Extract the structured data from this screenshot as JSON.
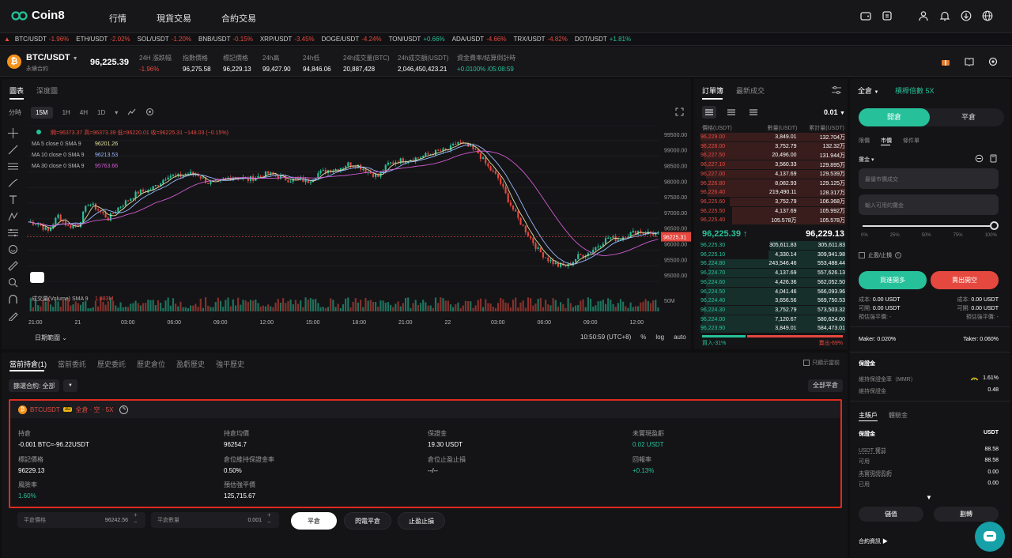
{
  "brand": {
    "name": "Coin8"
  },
  "nav": {
    "links": [
      "行情",
      "現貨交易",
      "合約交易"
    ]
  },
  "ticker": [
    {
      "sym": "BTC/USDT",
      "chg": "-1.96%",
      "up": false
    },
    {
      "sym": "ETH/USDT",
      "chg": "-2.02%",
      "up": false
    },
    {
      "sym": "SOL/USDT",
      "chg": "-1.20%",
      "up": false
    },
    {
      "sym": "BNB/USDT",
      "chg": "-0.15%",
      "up": false
    },
    {
      "sym": "XRP/USDT",
      "chg": "-3.45%",
      "up": false
    },
    {
      "sym": "DOGE/USDT",
      "chg": "-4.24%",
      "up": false
    },
    {
      "sym": "TON/USDT",
      "chg": "+0.66%",
      "up": true
    },
    {
      "sym": "ADA/USDT",
      "chg": "-4.66%",
      "up": false
    },
    {
      "sym": "TRX/USDT",
      "chg": "-4.82%",
      "up": false
    },
    {
      "sym": "DOT/USDT",
      "chg": "+1.81%",
      "up": true
    }
  ],
  "pair": {
    "coin_letter": "₿",
    "name": "BTC/USDT",
    "sub": "永續合約",
    "price": "96,225.39",
    "stats": [
      {
        "label": "24H 漲跌幅",
        "value": "-1.96%"
      },
      {
        "label": "指數價格",
        "value": "96,275.58"
      },
      {
        "label": "標記價格",
        "value": "96,229.13"
      },
      {
        "label": "24h高",
        "value": "99,427.90"
      },
      {
        "label": "24h低",
        "value": "94,846.06"
      },
      {
        "label": "24h成交量(BTC)",
        "value": "20,887,428"
      },
      {
        "label": "24h成交額(USDT)",
        "value": "2,046,450,423.21"
      },
      {
        "label": "資金費率/結算倒計時",
        "value": "+0.0100% /05:08:59"
      }
    ]
  },
  "chart": {
    "tabs": [
      "圖表",
      "深度圖"
    ],
    "intervals": [
      "分時",
      "15M",
      "1H",
      "4H",
      "1D"
    ],
    "ohlc": "開=96373.37 高=96373.39 低=96220.01 收=96225.31 −148.03 (−0.15%)",
    "ma": [
      {
        "label": "MA 5 close 0 SMA 9",
        "value": "96201.26",
        "color": "#e0e0a0"
      },
      {
        "label": "MA 10 close 0 SMA 9",
        "value": "96213.53",
        "color": "#9ab8ff"
      },
      {
        "label": "MA 30 close 0 SMA 9",
        "value": "95763.66",
        "color": "#d05ad0"
      }
    ],
    "vol_label": "成交量(Volume) SMA 9",
    "vol_value": "1.883M",
    "vol_axis": "50M",
    "price_tag": "96225.31",
    "price_axis": [
      "99500.00",
      "99000.00",
      "98500.00",
      "98000.00",
      "97500.00",
      "97000.00",
      "96500.00",
      "96000.00",
      "95500.00",
      "95000.00"
    ],
    "time_axis": [
      "21:00",
      "21",
      "03:00",
      "06:00",
      "09:00",
      "12:00",
      "15:00",
      "18:00",
      "21:00",
      "22",
      "03:00",
      "06:00",
      "09:00",
      "12:00"
    ],
    "date_range": "日期範圍",
    "clock": "10:50:59 (UTC+8)",
    "opts": [
      "%",
      "log",
      "auto"
    ]
  },
  "chart_data": {
    "type": "line",
    "title": "",
    "series": [
      {
        "values": [
          96700,
          96650,
          96400,
          96900,
          96550,
          96600,
          97300,
          97100,
          96800,
          97150,
          97400,
          97650,
          97700,
          97900,
          98200,
          98150,
          98250,
          98200,
          97950,
          97950,
          98100,
          98150,
          98050,
          98150,
          98250,
          98150,
          98050,
          98050,
          98000,
          98250,
          98350,
          98400,
          98550,
          98500,
          98300,
          98150,
          98550,
          98650,
          98700,
          98750,
          98850,
          98950,
          99000,
          99250,
          99100,
          98900,
          98450,
          98100,
          97400,
          96800,
          96300,
          95800,
          95500,
          95300,
          95300,
          95600,
          95700,
          95950,
          96200,
          96150,
          96300,
          96400,
          96350,
          96300
        ]
      }
    ],
    "ylim": [
      94800,
      99800
    ]
  },
  "orderbook": {
    "tabs": [
      "訂單簿",
      "最新成交"
    ],
    "precision": "0.01",
    "headers": [
      "價格(USDT)",
      "數量(USDT)",
      "累計量(USDT)"
    ],
    "asks": [
      {
        "p": "96,229.00",
        "q": "3,849.01",
        "t": "132.704万",
        "d": 1.0
      },
      {
        "p": "96,228.00",
        "q": "3,752.79",
        "t": "132.32万",
        "d": 0.99
      },
      {
        "p": "96,227.50",
        "q": "20,496.00",
        "t": "131.944万",
        "d": 0.98
      },
      {
        "p": "96,227.10",
        "q": "3,560.33",
        "t": "129.895万",
        "d": 0.97
      },
      {
        "p": "96,227.00",
        "q": "4,137.69",
        "t": "129.539万",
        "d": 0.96
      },
      {
        "p": "96,226.80",
        "q": "8,082.93",
        "t": "129.125万",
        "d": 0.95
      },
      {
        "p": "96,226.40",
        "q": "219,490.11",
        "t": "128.317万",
        "d": 0.95
      },
      {
        "p": "96,225.60",
        "q": "3,752.79",
        "t": "106.368万",
        "d": 0.8
      },
      {
        "p": "96,225.50",
        "q": "4,137.69",
        "t": "105.992万",
        "d": 0.78
      },
      {
        "p": "96,225.40",
        "q": "105.578万",
        "t": "105.578万",
        "d": 0.78
      }
    ],
    "last": "96,225.39 ↑",
    "mark": "96,229.13",
    "bids": [
      {
        "p": "96,225.30",
        "q": "305,611.83",
        "t": "305,611.83",
        "d": 0.52
      },
      {
        "p": "96,225.10",
        "q": "4,330.14",
        "t": "309,941.98",
        "d": 0.53
      },
      {
        "p": "96,224.80",
        "q": "243,546.46",
        "t": "553,488.44",
        "d": 0.94
      },
      {
        "p": "96,224.70",
        "q": "4,137.69",
        "t": "557,626.13",
        "d": 0.95
      },
      {
        "p": "96,224.60",
        "q": "4,426.36",
        "t": "562,052.50",
        "d": 0.96
      },
      {
        "p": "96,224.50",
        "q": "4,041.46",
        "t": "566,093.96",
        "d": 0.96
      },
      {
        "p": "96,224.40",
        "q": "3,656.56",
        "t": "569,750.53",
        "d": 0.97
      },
      {
        "p": "96,224.30",
        "q": "3,752.79",
        "t": "573,503.32",
        "d": 0.98
      },
      {
        "p": "96,224.00",
        "q": "7,120.67",
        "t": "580,624.00",
        "d": 0.99
      },
      {
        "p": "96,223.90",
        "q": "3,849.01",
        "t": "584,473.01",
        "d": 1.0
      }
    ],
    "buy_ratio": "買入-31%",
    "sell_ratio": "賣出-69%",
    "buy_fraction": 0.31
  },
  "trade": {
    "mode": "全倉",
    "leverage": "槓桿倍數 5X",
    "open": "開倉",
    "close": "平倉",
    "order_types": [
      "限價",
      "市價",
      "條件單"
    ],
    "margin_label": "攤金",
    "price_placeholder": "最優市價成交",
    "qty_placeholder": "輸入可用的攤金",
    "slider_marks": [
      "0%",
      "25%",
      "50%",
      "75%",
      "100%"
    ],
    "slider_fraction": 1.0,
    "tpsl": "止盈/止損",
    "buy": "買進開多",
    "sell": "賣出開空",
    "cost_l": "成本:",
    "cost_v": "0.00 USDT",
    "avail_l": "可開:",
    "avail_v": "0.00 USDT",
    "liq": "預估強平價: -",
    "maker": "Maker: 0.020%",
    "taker": "Taker: 0.060%",
    "margin_title": "保證金",
    "mmr_l": "維持保證金率（MMR）",
    "mmr_v": "1.61%",
    "mm_l": "維持保證金",
    "mm_v": "0.48",
    "acct_tabs": [
      "主賬戶",
      "體驗金"
    ],
    "acct_head_l": "保證金",
    "acct_head_r": "USDT",
    "acct_rows": [
      {
        "l": "USDT 權益",
        "v": "88.58"
      },
      {
        "l": "可用",
        "v": "88.58"
      },
      {
        "l": "未實現總盈虧",
        "v": "0.00"
      },
      {
        "l": "已用",
        "v": "0.00"
      }
    ],
    "deposit": "儲值",
    "transfer": "劃轉",
    "contract_info": "合約資訊 ▶"
  },
  "bottom": {
    "tabs": [
      "當前持倉(1)",
      "當前委託",
      "歷史委託",
      "歷史倉位",
      "盈虧歷史",
      "強平歷史"
    ],
    "only_current": "只顯示當前",
    "filter": "篩選合約: 全部",
    "close_all": "全部平倉",
    "pos": {
      "sym": "BTCUSDT",
      "tag": "3D",
      "info": "全倉 · 空 · 5X",
      "cells": [
        {
          "l": "持倉",
          "v": "-0.001 BTC≈-96.22USDT",
          "c": "#fff"
        },
        {
          "l": "持倉均價",
          "v": "96254.7",
          "c": "#fff"
        },
        {
          "l": "保證金",
          "v": "19.30 USDT",
          "c": "#fff"
        },
        {
          "l": "未實現盈虧",
          "v": "0.02 USDT",
          "c": "#26c19a"
        },
        {
          "l": "標記價格",
          "v": "96229.13",
          "c": "#fff"
        },
        {
          "l": "倉位維持保證金率",
          "v": "0.50%",
          "c": "#fff"
        },
        {
          "l": "倉位止盈止損",
          "v": "--/--",
          "c": "#fff"
        },
        {
          "l": "回報率",
          "v": "+0.13%",
          "c": "#26c19a"
        },
        {
          "l": "風險率",
          "v": "1.60%",
          "c": "#26c19a"
        },
        {
          "l": "預估強平價",
          "v": "125,715.67",
          "c": "#fff"
        }
      ]
    },
    "close_price_label": "平倉價格",
    "close_price_value": "96242.56",
    "close_qty_label": "平倉數量",
    "close_qty_value": "0.001",
    "btn_close": "平倉",
    "btn_flash": "閃電平倉",
    "btn_tpsl": "止盈止損"
  }
}
